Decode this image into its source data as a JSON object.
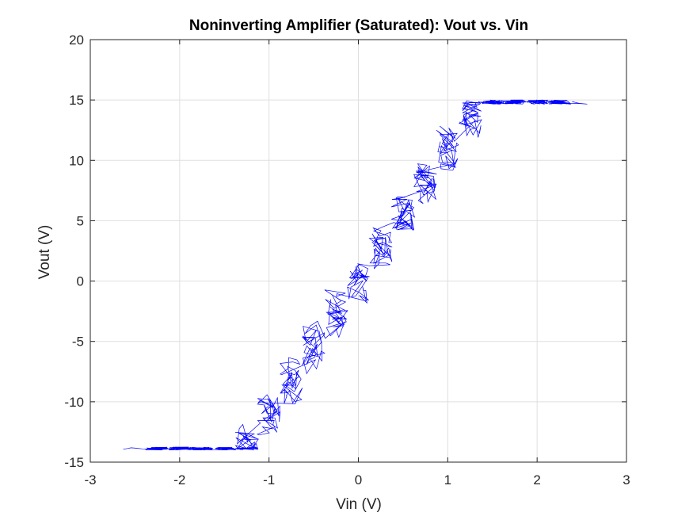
{
  "chart_data": {
    "type": "line",
    "title": "Noninverting Amplifier (Saturated): Vout vs. Vin",
    "xlabel": "Vin (V)",
    "ylabel": "Vout (V)",
    "xlim": [
      -3,
      3
    ],
    "ylim": [
      -15,
      20
    ],
    "xticks": [
      -3,
      -2,
      -1,
      0,
      1,
      2,
      3
    ],
    "yticks": [
      -15,
      -10,
      -5,
      0,
      5,
      10,
      15,
      20
    ],
    "xtick_labels": [
      "-3",
      "-2",
      "-1",
      "0",
      "1",
      "2",
      "3"
    ],
    "ytick_labels": [
      "-15",
      "-10",
      "-5",
      "0",
      "5",
      "10",
      "15",
      "20"
    ],
    "grid": true,
    "legend": "none",
    "series": [
      {
        "color": "#0000ff",
        "gain": 11,
        "saturation": [
          -14,
          15
        ],
        "x_range": [
          -2.4,
          2.4
        ],
        "x_quantization_step": 0.25,
        "y_noise_amplitude": 0.9,
        "samples": [
          {
            "x": -2.4,
            "y": -14
          },
          {
            "x": -2.0,
            "y": -14
          },
          {
            "x": -1.5,
            "y": -13.5
          },
          {
            "x": -1.25,
            "y": -12
          },
          {
            "x": -1.0,
            "y": -10
          },
          {
            "x": -0.75,
            "y": -7.5
          },
          {
            "x": -0.5,
            "y": -5
          },
          {
            "x": -0.25,
            "y": -2.5
          },
          {
            "x": 0.0,
            "y": 0
          },
          {
            "x": 0.25,
            "y": 2.5
          },
          {
            "x": 0.5,
            "y": 5
          },
          {
            "x": 0.75,
            "y": 8
          },
          {
            "x": 1.0,
            "y": 10.5
          },
          {
            "x": 1.25,
            "y": 13
          },
          {
            "x": 1.5,
            "y": 14.8
          },
          {
            "x": 2.0,
            "y": 14.8
          },
          {
            "x": 2.4,
            "y": 14.8
          }
        ]
      }
    ]
  },
  "colors": {
    "series": "#0000ff",
    "grid": "#dfdfdf",
    "axis": "#262626",
    "background": "#ffffff"
  }
}
